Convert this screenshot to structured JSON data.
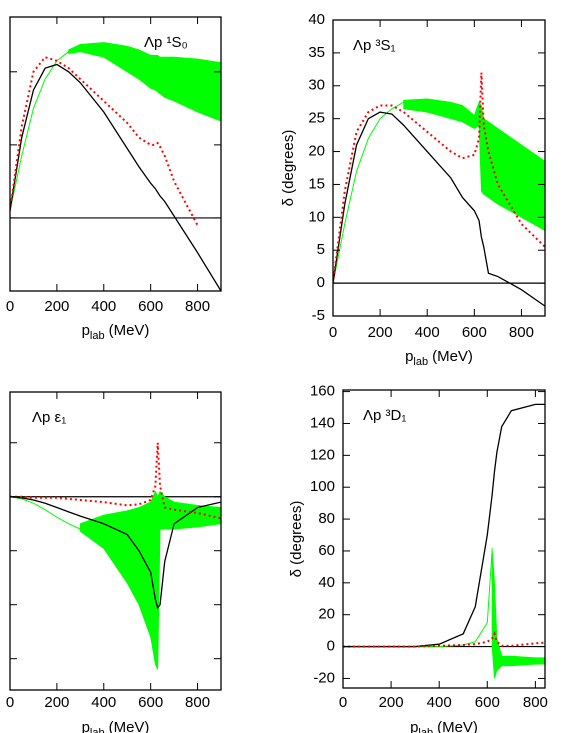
{
  "chart_data": [
    {
      "type": "line",
      "annotation": "Λp ¹S₀",
      "xlabel": {
        "main": "p",
        "sub": "lab",
        "unit": "(MeV)"
      },
      "xlim": [
        0,
        900
      ],
      "xticks": [
        0,
        200,
        400,
        600,
        800
      ],
      "ylim": [
        -20,
        55
      ],
      "yticks": [
        -20,
        0,
        20,
        40
      ],
      "show_ytick_labels": false,
      "x": [
        0,
        50,
        100,
        150,
        200,
        250,
        300,
        400,
        500,
        550,
        600,
        620,
        630,
        640,
        660,
        700,
        800,
        900
      ],
      "series": [
        {
          "color": "#00ff00",
          "style": "band",
          "low": [
            null,
            null,
            null,
            null,
            null,
            45,
            45.5,
            44,
            40,
            38,
            35.5,
            35,
            34.5,
            34,
            33,
            32,
            29,
            26.5
          ],
          "high": [
            null,
            null,
            null,
            null,
            null,
            46,
            47.5,
            48,
            47,
            46,
            44.5,
            44.5,
            44.5,
            44,
            44,
            44,
            43.5,
            42.5
          ]
        },
        {
          "color": "#00ff00",
          "style": "thin",
          "values": [
            2,
            17,
            30,
            38,
            43,
            45.5,
            47,
            null,
            null,
            null,
            null,
            null,
            null,
            null,
            null,
            null,
            null,
            null
          ]
        },
        {
          "color": "#000000",
          "style": "solid",
          "values": [
            2,
            22,
            35,
            41,
            42,
            40,
            37,
            29,
            19,
            14,
            9.5,
            8,
            7,
            6,
            4.5,
            0.5,
            -9.5,
            -20
          ]
        },
        {
          "color": "#ff0000",
          "style": "dotted",
          "values": [
            2,
            25,
            40,
            44,
            43,
            41,
            38,
            32,
            26,
            22,
            20,
            20,
            20.5,
            19.5,
            17,
            10,
            -2,
            null
          ]
        }
      ]
    },
    {
      "type": "line",
      "annotation": "Λp ³S₁",
      "xlabel": {
        "main": "p",
        "sub": "lab",
        "unit": "(MeV)"
      },
      "ylabel": "δ (degrees)",
      "xlim": [
        0,
        900
      ],
      "xticks": [
        0,
        200,
        400,
        600,
        800
      ],
      "ylim": [
        -5,
        40
      ],
      "yticks": [
        -5,
        0,
        5,
        10,
        15,
        20,
        25,
        30,
        35,
        40
      ],
      "show_ytick_labels": true,
      "x": [
        0,
        50,
        100,
        150,
        200,
        250,
        300,
        400,
        500,
        550,
        600,
        620,
        630,
        640,
        660,
        700,
        800,
        900
      ],
      "series": [
        {
          "color": "#00ff00",
          "style": "band",
          "low": [
            null,
            null,
            null,
            null,
            null,
            null,
            26.5,
            26,
            25,
            24.5,
            23.5,
            24,
            14,
            13.5,
            13,
            12,
            10,
            8
          ],
          "high": [
            null,
            null,
            null,
            null,
            null,
            null,
            27.8,
            28,
            27.5,
            27,
            25.5,
            27.5,
            27,
            25,
            24.5,
            23.5,
            21,
            18.5
          ]
        },
        {
          "color": "#00ff00",
          "style": "thin",
          "values": [
            0,
            9,
            17,
            22,
            25,
            26.5,
            27.5,
            null,
            null,
            null,
            null,
            null,
            null,
            null,
            null,
            null,
            null,
            null
          ]
        },
        {
          "color": "#000000",
          "style": "solid",
          "values": [
            0,
            12,
            21,
            25,
            26,
            25.7,
            24,
            20,
            16,
            13,
            11,
            9.5,
            7,
            5.5,
            1.5,
            1,
            -1,
            -3.5
          ]
        },
        {
          "color": "#ff0000",
          "style": "dotted",
          "values": [
            0,
            14,
            23,
            26,
            27,
            27,
            26,
            23,
            20,
            19,
            19.5,
            22,
            32,
            24,
            20,
            15,
            9,
            5.5
          ]
        }
      ]
    },
    {
      "type": "line",
      "annotation": "Λp ε₁",
      "xlabel": {
        "main": "p",
        "sub": "lab",
        "unit": "(MeV)"
      },
      "xlim": [
        0,
        900
      ],
      "xticks": [
        0,
        200,
        400,
        600,
        800
      ],
      "ylim": [
        -17.9,
        9.7
      ],
      "yticks": [
        -15,
        -10,
        -5,
        0,
        5
      ],
      "show_ytick_labels": false,
      "x": [
        0,
        50,
        100,
        150,
        200,
        250,
        300,
        400,
        500,
        550,
        600,
        620,
        630,
        640,
        660,
        700,
        800,
        900
      ],
      "series": [
        {
          "color": "#00ff00",
          "style": "band",
          "low": [
            null,
            null,
            null,
            null,
            null,
            null,
            -3.2,
            -4.8,
            -8,
            -10,
            -13,
            -15.5,
            -16,
            -3,
            -3,
            -3,
            -2.8,
            -2.5
          ],
          "high": [
            null,
            null,
            null,
            null,
            null,
            null,
            -2.5,
            -1.7,
            -1.3,
            -1,
            -0.5,
            0.5,
            0,
            0.5,
            0,
            -0.5,
            -0.8,
            -1
          ]
        },
        {
          "color": "#00ff00",
          "style": "thin",
          "values": [
            0,
            -0.2,
            -0.6,
            -1.2,
            -1.9,
            -2.5,
            -3,
            null,
            null,
            null,
            null,
            null,
            null,
            null,
            null,
            null,
            null,
            null
          ]
        },
        {
          "color": "#000000",
          "style": "solid",
          "values": [
            0,
            -0.1,
            -0.3,
            -0.6,
            -1,
            -1.4,
            -1.8,
            -2.5,
            -3.5,
            -5,
            -7,
            -9.5,
            -10.3,
            -10,
            -6,
            -2.5,
            -1,
            -0.5
          ]
        },
        {
          "color": "#ff0000",
          "style": "dotted",
          "values": [
            0,
            0,
            -0.1,
            -0.1,
            -0.1,
            -0.2,
            -0.3,
            -0.5,
            -0.8,
            -0.7,
            -0.3,
            1,
            5,
            1,
            -1,
            -1.2,
            -1.5,
            -2
          ]
        }
      ]
    },
    {
      "type": "line",
      "annotation": "Λp ³D₁",
      "xlabel": {
        "main": "p",
        "sub": "lab",
        "unit": "(MeV)"
      },
      "ylabel": "δ (degrees)",
      "xlim": [
        0,
        840
      ],
      "xticks": [
        0,
        200,
        400,
        600,
        800
      ],
      "ylim": [
        -26,
        161
      ],
      "yticks": [
        -20,
        0,
        20,
        40,
        60,
        80,
        100,
        120,
        140,
        160
      ],
      "show_ytick_labels": true,
      "x": [
        0,
        50,
        100,
        150,
        200,
        250,
        300,
        400,
        500,
        550,
        600,
        620,
        630,
        640,
        660,
        700,
        800,
        840
      ],
      "series": [
        {
          "color": "#00ff00",
          "style": "band",
          "low": [
            null,
            null,
            null,
            null,
            null,
            null,
            null,
            null,
            null,
            null,
            null,
            0,
            -20,
            -15,
            -12,
            -12,
            -11,
            -11
          ],
          "high": [
            null,
            null,
            null,
            null,
            null,
            null,
            null,
            null,
            null,
            null,
            null,
            62,
            40,
            5,
            -6,
            -6,
            -7,
            -7
          ]
        },
        {
          "color": "#00ff00",
          "style": "thin",
          "values": [
            0,
            0,
            0,
            0,
            0,
            0,
            0,
            0,
            1,
            3,
            15,
            60,
            null,
            null,
            null,
            null,
            null,
            null
          ]
        },
        {
          "color": "#000000",
          "style": "solid",
          "values": [
            0,
            0,
            0,
            0,
            0,
            0,
            0,
            1.5,
            8,
            25,
            70,
            95,
            110,
            122,
            138,
            148,
            152,
            152
          ]
        },
        {
          "color": "#ff0000",
          "style": "dotted",
          "values": [
            0,
            0,
            0,
            0,
            0,
            0,
            0,
            0.5,
            1,
            1.5,
            3,
            5,
            8,
            3,
            0.5,
            0.5,
            2,
            2.5
          ]
        }
      ]
    }
  ]
}
